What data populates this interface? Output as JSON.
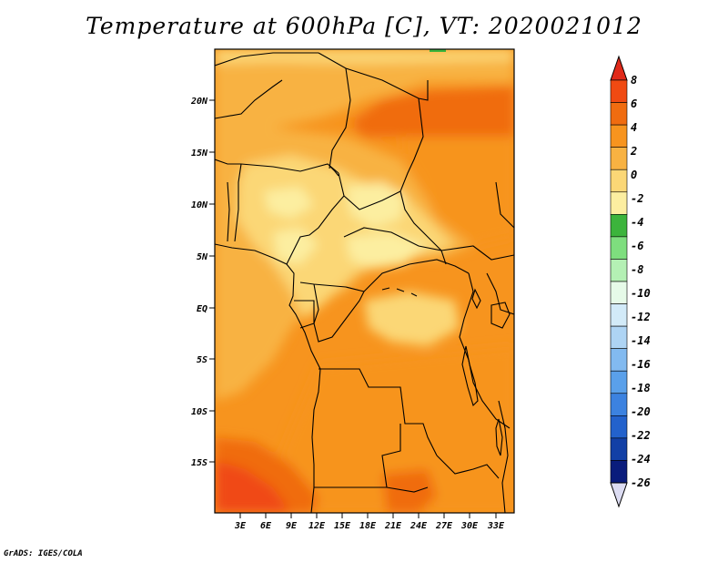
{
  "title": "Temperature at 600hPa [C], VT: 2020021012",
  "credit": "GrADS: IGES/COLA",
  "map": {
    "lat_labels": [
      "20N",
      "15N",
      "10N",
      "5N",
      "EQ",
      "5S",
      "10S",
      "15S"
    ],
    "lon_labels": [
      "3E",
      "6E",
      "9E",
      "12E",
      "15E",
      "18E",
      "21E",
      "24E",
      "27E",
      "30E",
      "33E"
    ]
  },
  "colorbar": {
    "labels": [
      "8",
      "6",
      "4",
      "2",
      "0",
      "-2",
      "-4",
      "-6",
      "-8",
      "-10",
      "-12",
      "-14",
      "-16",
      "-18",
      "-20",
      "-22",
      "-24",
      "-26"
    ],
    "colors": {
      "top_triangle": "#e02a1a",
      "bottom_triangle": "#dcdcf2",
      "bins": [
        "#f04a12",
        "#f06c10",
        "#f7941e",
        "#f8b242",
        "#fbd776",
        "#fceea0",
        "#3cb43c",
        "#7ede7e",
        "#b4f0b4",
        "#e6fae8",
        "#d2eaf8",
        "#aed4f4",
        "#82baf0",
        "#5aa0ea",
        "#3c82e0",
        "#2362cc",
        "#1240a6",
        "#0a1c7c"
      ]
    }
  }
}
